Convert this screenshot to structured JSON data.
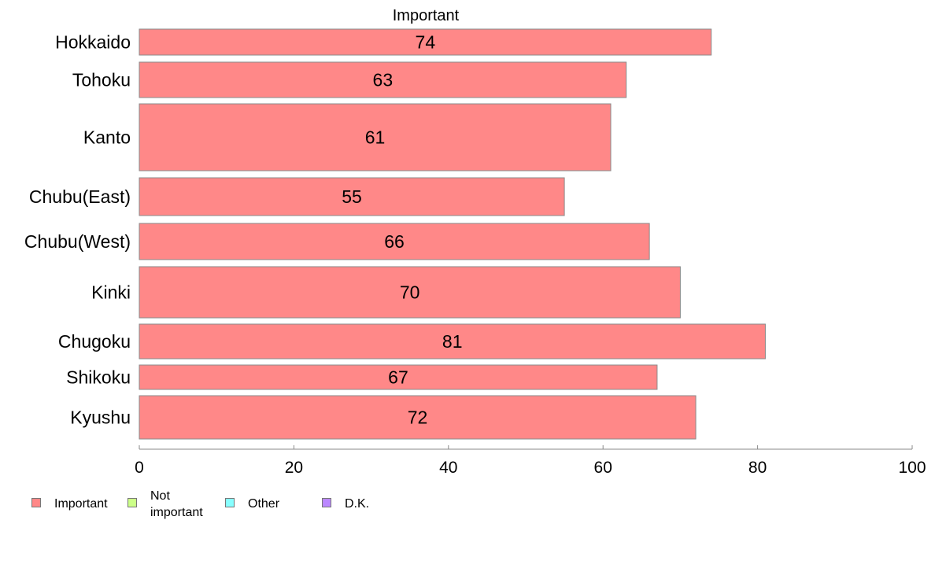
{
  "chart_data": {
    "type": "bar",
    "orientation": "horizontal",
    "title": "Important",
    "categories": [
      "Hokkaido",
      "Tohoku",
      "Kanto",
      "Chubu(East)",
      "Chubu(West)",
      "Kinki",
      "Chugoku",
      "Shikoku",
      "Kyushu"
    ],
    "series": [
      {
        "name": "Important",
        "color": "#ff8888",
        "values": [
          74,
          63,
          61,
          55,
          66,
          70,
          81,
          67,
          72
        ]
      }
    ],
    "xlim": [
      0,
      100
    ],
    "xticks": [
      0,
      20,
      40,
      60,
      80,
      100
    ],
    "grid": false,
    "legend_position": "bottom-left",
    "legend": [
      {
        "label": "Important",
        "color": "#ff8888",
        "icon": "red-swatch-icon"
      },
      {
        "label": "Not\nimportant",
        "color": "#ccff88",
        "icon": "green-swatch-icon"
      },
      {
        "label": "Other",
        "color": "#88ffff",
        "icon": "cyan-swatch-icon"
      },
      {
        "label": "D.K.",
        "color": "#bb88ff",
        "icon": "purple-swatch-icon"
      }
    ]
  }
}
